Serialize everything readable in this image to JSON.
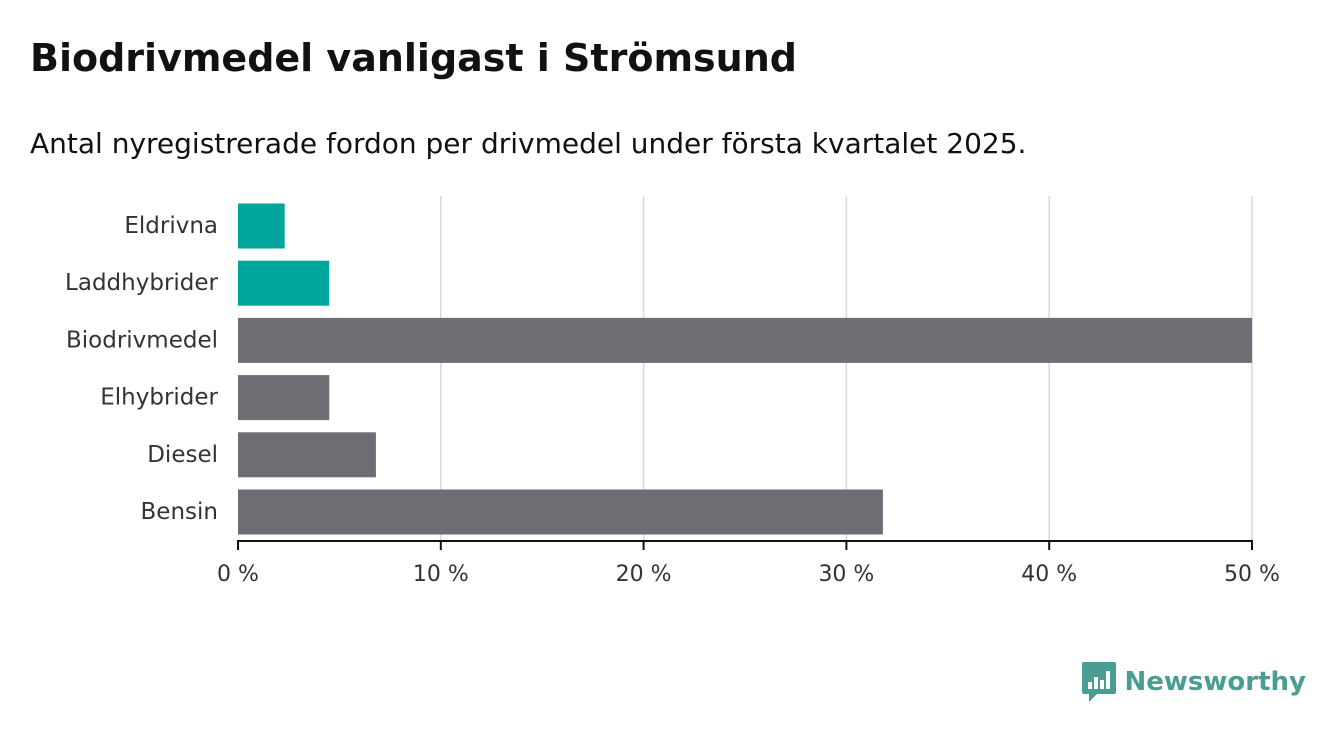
{
  "title": "Biodrivmedel vanligast i Strömsund",
  "subtitle": "Antal nyregistrerade fordon per drivmedel under första kvartalet 2025.",
  "brand": {
    "name": "Newsworthy",
    "icon": "newsworthy-logo-icon",
    "color": "#4a9d92"
  },
  "chart_data": {
    "type": "bar",
    "orientation": "horizontal",
    "categories": [
      "Eldrivna",
      "Laddhybrider",
      "Biodrivmedel",
      "Elhybrider",
      "Diesel",
      "Bensin"
    ],
    "values": [
      2.3,
      4.5,
      50.0,
      4.5,
      6.8,
      31.8
    ],
    "bar_colors": [
      "#00a69c",
      "#00a69c",
      "#6e6d74",
      "#6e6d74",
      "#6e6d74",
      "#6e6d74"
    ],
    "xlim": [
      0,
      50
    ],
    "x_ticks": [
      0,
      10,
      20,
      30,
      40,
      50
    ],
    "x_tick_labels": [
      "0 %",
      "10 %",
      "20 %",
      "30 %",
      "40 %",
      "50 %"
    ],
    "grid": true,
    "legend": "none"
  }
}
